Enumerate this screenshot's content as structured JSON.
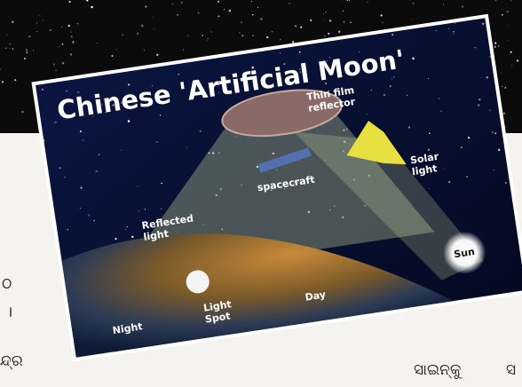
{
  "graphic": {
    "title": "Chinese 'Artificial Moon'",
    "reflector": [
      "Thin film",
      "reflector"
    ],
    "spacecraft": "spacecraft",
    "solar_light": [
      "Solar",
      "light"
    ],
    "reflected_light": [
      "Reflected",
      "light"
    ],
    "sun": "Sun",
    "light_spot": [
      "Light",
      "Spot"
    ],
    "night": "Night",
    "day": "Day"
  },
  "article": {
    "fragments": [
      "ଠ",
      "।",
      "ନ୍ଦ୍ର",
      "ସାଇନ୍କୁ",
      "ସ"
    ]
  }
}
